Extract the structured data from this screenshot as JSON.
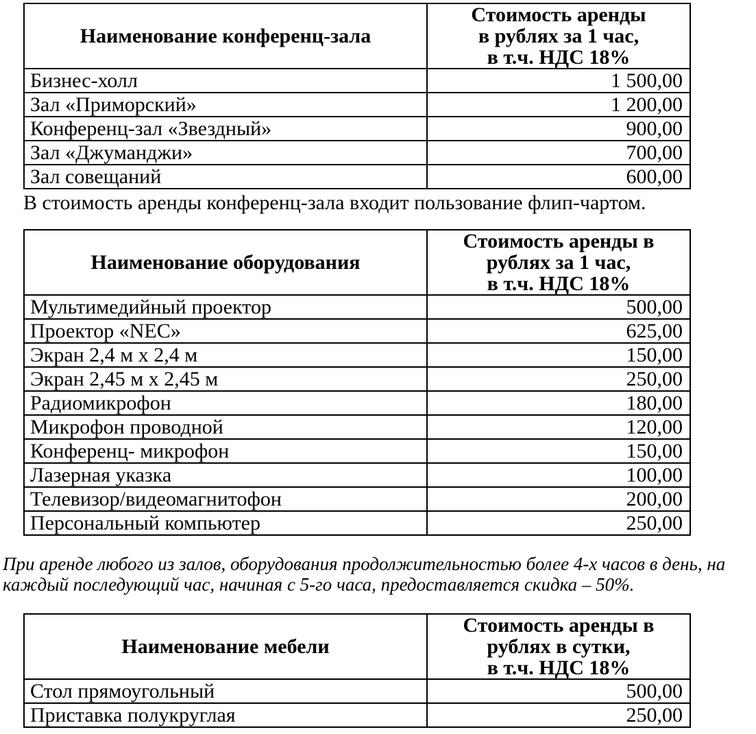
{
  "tables": [
    {
      "name_header": "Наименование конференц-зала",
      "price_header_lines": [
        "Стоимость аренды",
        "в рублях за 1 час,",
        "в т.ч. НДС 18%"
      ],
      "rows": [
        {
          "name": "Бизнес-холл",
          "price": "1 500,00"
        },
        {
          "name": "Зал «Приморский»",
          "price": "1 200,00"
        },
        {
          "name": "Конференц-зал «Звездный»",
          "price": "900,00"
        },
        {
          "name": "Зал «Джуманджи»",
          "price": "700,00"
        },
        {
          "name": "Зал совещаний",
          "price": "600,00"
        }
      ]
    },
    {
      "name_header": "Наименование оборудования",
      "price_header_lines": [
        "Стоимость аренды в",
        "рублях за 1 час,",
        "в т.ч. НДС 18%"
      ],
      "rows": [
        {
          "name": "Мультимедийный проектор",
          "price": "500,00"
        },
        {
          "name": "Проектор «NEC»",
          "price": "625,00"
        },
        {
          "name": "Экран 2,4 м х 2,4 м",
          "price": "150,00"
        },
        {
          "name": "Экран 2,45 м х 2,45 м",
          "price": "250,00"
        },
        {
          "name": "Радиомикрофон",
          "price": "180,00"
        },
        {
          "name": "Микрофон проводной",
          "price": "120,00"
        },
        {
          "name": "Конференц- микрофон",
          "price": "150,00"
        },
        {
          "name": "Лазерная указка",
          "price": "100,00"
        },
        {
          "name": "Телевизор/видеомагнитофон",
          "price": "200,00"
        },
        {
          "name": "Персональный компьютер",
          "price": "250,00"
        }
      ]
    },
    {
      "name_header": "Наименование мебели",
      "price_header_lines": [
        "Стоимость аренды в",
        "рублях в сутки,",
        "в т.ч. НДС 18%"
      ],
      "rows": [
        {
          "name": "Стол прямоугольный",
          "price": "500,00"
        },
        {
          "name": "Приставка полукруглая",
          "price": "250,00"
        }
      ]
    }
  ],
  "notes": {
    "flipchart": "В стоимость аренды конференц-зала входит пользование флип-чартом.",
    "discount_lines": [
      "При аренде любого из залов, оборудования продолжительностью более 4-х часов в день, на",
      "каждый последующий час, начиная с 5-го часа, предоставляется скидка – 50%."
    ]
  },
  "colors": {
    "text": "#000000",
    "border": "#000000",
    "background": "#ffffff"
  }
}
